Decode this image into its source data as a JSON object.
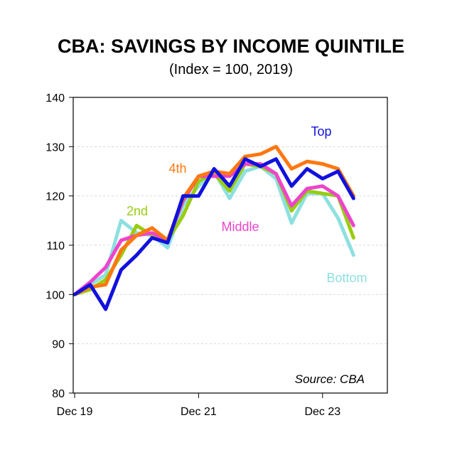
{
  "chart_data": {
    "type": "line",
    "title": "CBA: SAVINGS BY INCOME QUINTILE",
    "subtitle": "(Index = 100, 2019)",
    "source": "Source: CBA",
    "xlabel": "",
    "ylabel": "",
    "ylim": [
      80,
      140
    ],
    "yticks": [
      80,
      90,
      100,
      110,
      120,
      130,
      140
    ],
    "x_tick_labels": [
      "Dec 19",
      "Dec 21",
      "Dec 23"
    ],
    "x_tick_index": [
      0,
      8,
      16
    ],
    "x_count": 19,
    "grid": true,
    "series": [
      {
        "name": "Bottom",
        "color": "#8ee0e0",
        "values": [
          100,
          102,
          104,
          115,
          112.5,
          112,
          109.5,
          118,
          122,
          125,
          119.5,
          125,
          126,
          123.5,
          114.5,
          120.5,
          120.5,
          115.5,
          108
        ]
      },
      {
        "name": "2nd",
        "color": "#99cc11",
        "values": [
          100,
          101,
          103,
          108,
          114,
          112,
          111,
          116,
          123,
          124.5,
          121,
          126.5,
          126,
          124.5,
          117,
          121,
          120.5,
          120,
          111.5
        ]
      },
      {
        "name": "Middle",
        "color": "#ee44cc",
        "values": [
          100,
          102.5,
          105.5,
          111,
          112,
          112.5,
          111,
          119,
          124,
          124,
          124,
          126.5,
          126.5,
          124.5,
          118,
          121.5,
          122,
          120,
          114
        ]
      },
      {
        "name": "4th",
        "color": "#ff7711",
        "values": [
          100,
          101.5,
          102,
          109,
          112,
          113.5,
          111,
          119.5,
          124,
          125,
          124.5,
          128,
          128.5,
          130,
          125.5,
          127,
          126.5,
          125.5,
          120
        ]
      },
      {
        "name": "Top",
        "color": "#1111dd",
        "values": [
          100,
          102,
          97,
          105,
          108,
          111.5,
          110.5,
          120,
          120,
          125.5,
          122,
          127.5,
          126,
          127.5,
          122,
          125.5,
          123.5,
          125,
          119.5
        ]
      }
    ],
    "series_label_order": [
      "Top",
      "4th",
      "2nd",
      "Middle",
      "Bottom"
    ]
  }
}
